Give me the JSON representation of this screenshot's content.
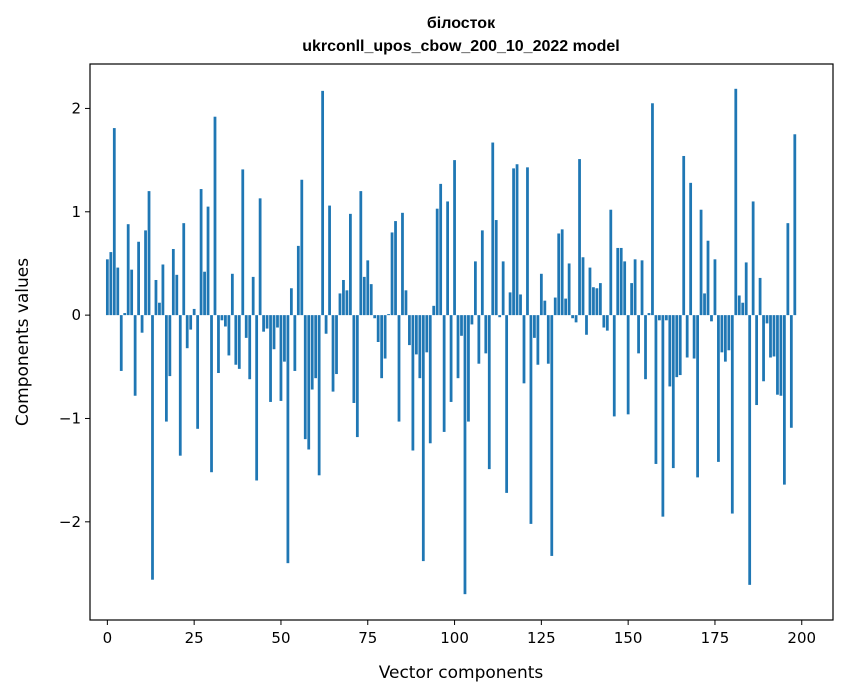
{
  "chart_data": {
    "type": "bar",
    "title": "білосток",
    "subtitle": "ukrconll_upos_cbow_200_10_2022 model",
    "xlabel": "Vector components",
    "ylabel": "Components values",
    "xlim": [
      -5,
      209
    ],
    "ylim": [
      -2.95,
      2.43
    ],
    "x_ticks": [
      0,
      25,
      50,
      75,
      100,
      125,
      150,
      175,
      200
    ],
    "y_ticks": [
      -2,
      -1,
      0,
      1,
      2
    ],
    "y_tick_labels": [
      "−2",
      "−1",
      "0",
      "1",
      "2"
    ],
    "bar_color": "#1f77b4",
    "grid": false,
    "values": [
      0.54,
      0.61,
      1.81,
      0.46,
      -0.54,
      0.02,
      0.88,
      0.44,
      -0.78,
      0.71,
      -0.17,
      0.82,
      1.2,
      -2.56,
      0.34,
      0.12,
      0.49,
      -1.03,
      -0.59,
      0.64,
      0.39,
      -1.36,
      0.89,
      -0.32,
      -0.14,
      0.06,
      -1.1,
      1.22,
      0.42,
      1.05,
      -1.52,
      1.92,
      -0.56,
      -0.05,
      -0.11,
      -0.39,
      0.4,
      -0.48,
      -0.52,
      1.41,
      -0.22,
      -0.62,
      0.37,
      -1.6,
      1.13,
      -0.16,
      -0.13,
      -0.84,
      -0.33,
      -0.12,
      -0.83,
      -0.45,
      -2.4,
      0.26,
      -0.54,
      0.67,
      1.31,
      -1.2,
      -1.3,
      -0.72,
      -0.61,
      -1.55,
      2.17,
      -0.18,
      1.06,
      -0.74,
      -0.57,
      0.21,
      0.34,
      0.24,
      0.98,
      -0.85,
      -1.18,
      1.2,
      0.37,
      0.53,
      0.3,
      -0.03,
      -0.26,
      -0.61,
      -0.42,
      0.01,
      0.8,
      0.91,
      -1.03,
      0.99,
      0.24,
      -0.29,
      -1.31,
      -0.38,
      -0.61,
      -2.38,
      -0.36,
      -1.24,
      0.09,
      1.03,
      1.27,
      -1.13,
      1.1,
      -0.84,
      1.5,
      -0.61,
      -0.2,
      -2.7,
      -1.03,
      -0.09,
      0.52,
      -0.47,
      0.82,
      -0.37,
      -1.49,
      1.67,
      0.92,
      -0.02,
      0.52,
      -1.72,
      0.22,
      1.42,
      1.46,
      0.2,
      -0.66,
      1.43,
      -2.02,
      -0.22,
      -0.48,
      0.4,
      0.14,
      -0.47,
      -2.33,
      0.17,
      0.79,
      0.83,
      0.16,
      0.5,
      -0.03,
      -0.07,
      1.51,
      0.56,
      -0.19,
      0.46,
      0.27,
      0.26,
      0.31,
      -0.12,
      -0.15,
      1.02,
      -0.98,
      0.65,
      0.65,
      0.52,
      -0.96,
      0.31,
      0.54,
      -0.37,
      0.53,
      -0.62,
      0.02,
      2.05,
      -1.44,
      -0.05,
      -1.95,
      -0.05,
      -0.69,
      -1.48,
      -0.6,
      -0.58,
      1.54,
      -0.41,
      1.28,
      -0.42,
      -1.57,
      1.02,
      0.21,
      0.72,
      -0.06,
      0.54,
      -1.42,
      -0.36,
      -0.45,
      -0.34,
      -1.92,
      2.19,
      0.19,
      0.12,
      0.51,
      -2.61,
      1.1,
      -0.87,
      0.36,
      -0.64,
      -0.08,
      -0.41,
      -0.4,
      -0.77,
      -0.78,
      -1.64,
      0.89,
      -1.09,
      1.75
    ]
  }
}
